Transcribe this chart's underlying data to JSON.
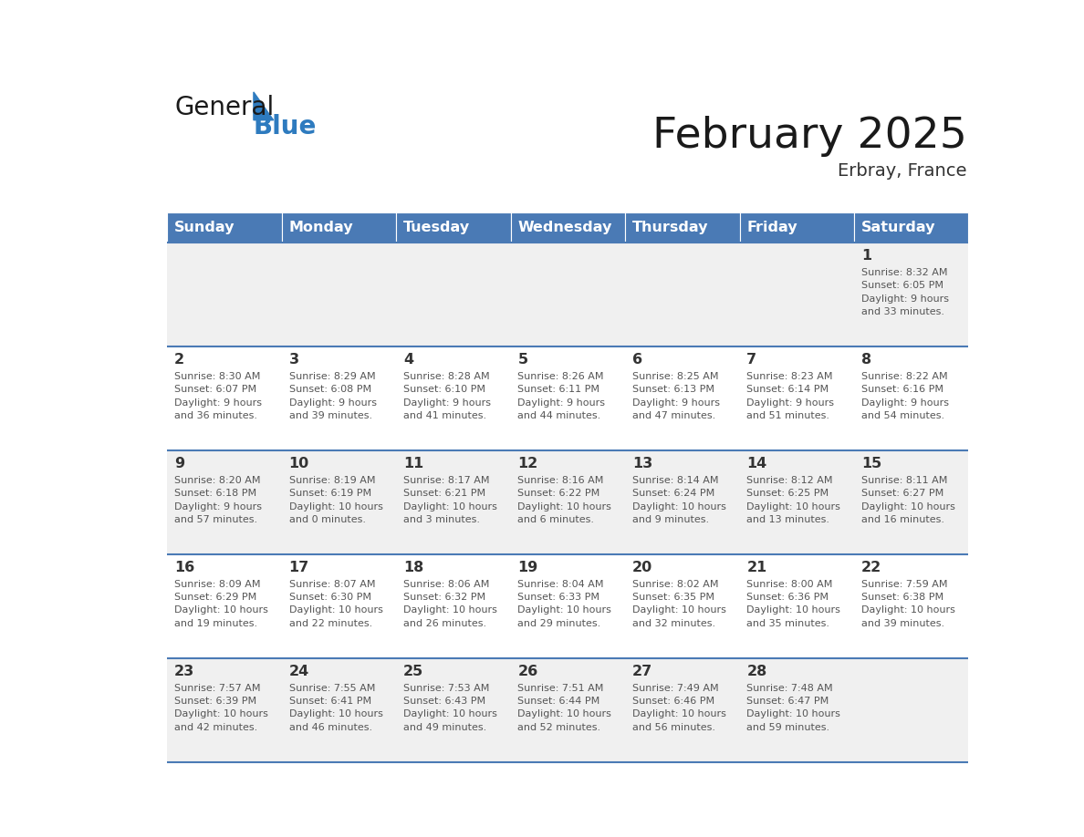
{
  "title": "February 2025",
  "subtitle": "Erbray, France",
  "days_of_week": [
    "Sunday",
    "Monday",
    "Tuesday",
    "Wednesday",
    "Thursday",
    "Friday",
    "Saturday"
  ],
  "header_bg": "#4a7ab5",
  "header_text_color": "#ffffff",
  "row_bg_odd": "#f0f0f0",
  "row_bg_even": "#ffffff",
  "cell_text_color": "#555555",
  "day_num_color": "#333333",
  "border_color": "#4a7ab5",
  "calendar": [
    [
      null,
      null,
      null,
      null,
      null,
      null,
      {
        "day": 1,
        "sunrise": "8:32 AM",
        "sunset": "6:05 PM",
        "daylight": "9 hours\nand 33 minutes."
      }
    ],
    [
      {
        "day": 2,
        "sunrise": "8:30 AM",
        "sunset": "6:07 PM",
        "daylight": "9 hours\nand 36 minutes."
      },
      {
        "day": 3,
        "sunrise": "8:29 AM",
        "sunset": "6:08 PM",
        "daylight": "9 hours\nand 39 minutes."
      },
      {
        "day": 4,
        "sunrise": "8:28 AM",
        "sunset": "6:10 PM",
        "daylight": "9 hours\nand 41 minutes."
      },
      {
        "day": 5,
        "sunrise": "8:26 AM",
        "sunset": "6:11 PM",
        "daylight": "9 hours\nand 44 minutes."
      },
      {
        "day": 6,
        "sunrise": "8:25 AM",
        "sunset": "6:13 PM",
        "daylight": "9 hours\nand 47 minutes."
      },
      {
        "day": 7,
        "sunrise": "8:23 AM",
        "sunset": "6:14 PM",
        "daylight": "9 hours\nand 51 minutes."
      },
      {
        "day": 8,
        "sunrise": "8:22 AM",
        "sunset": "6:16 PM",
        "daylight": "9 hours\nand 54 minutes."
      }
    ],
    [
      {
        "day": 9,
        "sunrise": "8:20 AM",
        "sunset": "6:18 PM",
        "daylight": "9 hours\nand 57 minutes."
      },
      {
        "day": 10,
        "sunrise": "8:19 AM",
        "sunset": "6:19 PM",
        "daylight": "10 hours\nand 0 minutes."
      },
      {
        "day": 11,
        "sunrise": "8:17 AM",
        "sunset": "6:21 PM",
        "daylight": "10 hours\nand 3 minutes."
      },
      {
        "day": 12,
        "sunrise": "8:16 AM",
        "sunset": "6:22 PM",
        "daylight": "10 hours\nand 6 minutes."
      },
      {
        "day": 13,
        "sunrise": "8:14 AM",
        "sunset": "6:24 PM",
        "daylight": "10 hours\nand 9 minutes."
      },
      {
        "day": 14,
        "sunrise": "8:12 AM",
        "sunset": "6:25 PM",
        "daylight": "10 hours\nand 13 minutes."
      },
      {
        "day": 15,
        "sunrise": "8:11 AM",
        "sunset": "6:27 PM",
        "daylight": "10 hours\nand 16 minutes."
      }
    ],
    [
      {
        "day": 16,
        "sunrise": "8:09 AM",
        "sunset": "6:29 PM",
        "daylight": "10 hours\nand 19 minutes."
      },
      {
        "day": 17,
        "sunrise": "8:07 AM",
        "sunset": "6:30 PM",
        "daylight": "10 hours\nand 22 minutes."
      },
      {
        "day": 18,
        "sunrise": "8:06 AM",
        "sunset": "6:32 PM",
        "daylight": "10 hours\nand 26 minutes."
      },
      {
        "day": 19,
        "sunrise": "8:04 AM",
        "sunset": "6:33 PM",
        "daylight": "10 hours\nand 29 minutes."
      },
      {
        "day": 20,
        "sunrise": "8:02 AM",
        "sunset": "6:35 PM",
        "daylight": "10 hours\nand 32 minutes."
      },
      {
        "day": 21,
        "sunrise": "8:00 AM",
        "sunset": "6:36 PM",
        "daylight": "10 hours\nand 35 minutes."
      },
      {
        "day": 22,
        "sunrise": "7:59 AM",
        "sunset": "6:38 PM",
        "daylight": "10 hours\nand 39 minutes."
      }
    ],
    [
      {
        "day": 23,
        "sunrise": "7:57 AM",
        "sunset": "6:39 PM",
        "daylight": "10 hours\nand 42 minutes."
      },
      {
        "day": 24,
        "sunrise": "7:55 AM",
        "sunset": "6:41 PM",
        "daylight": "10 hours\nand 46 minutes."
      },
      {
        "day": 25,
        "sunrise": "7:53 AM",
        "sunset": "6:43 PM",
        "daylight": "10 hours\nand 49 minutes."
      },
      {
        "day": 26,
        "sunrise": "7:51 AM",
        "sunset": "6:44 PM",
        "daylight": "10 hours\nand 52 minutes."
      },
      {
        "day": 27,
        "sunrise": "7:49 AM",
        "sunset": "6:46 PM",
        "daylight": "10 hours\nand 56 minutes."
      },
      {
        "day": 28,
        "sunrise": "7:48 AM",
        "sunset": "6:47 PM",
        "daylight": "10 hours\nand 59 minutes."
      },
      null
    ]
  ]
}
